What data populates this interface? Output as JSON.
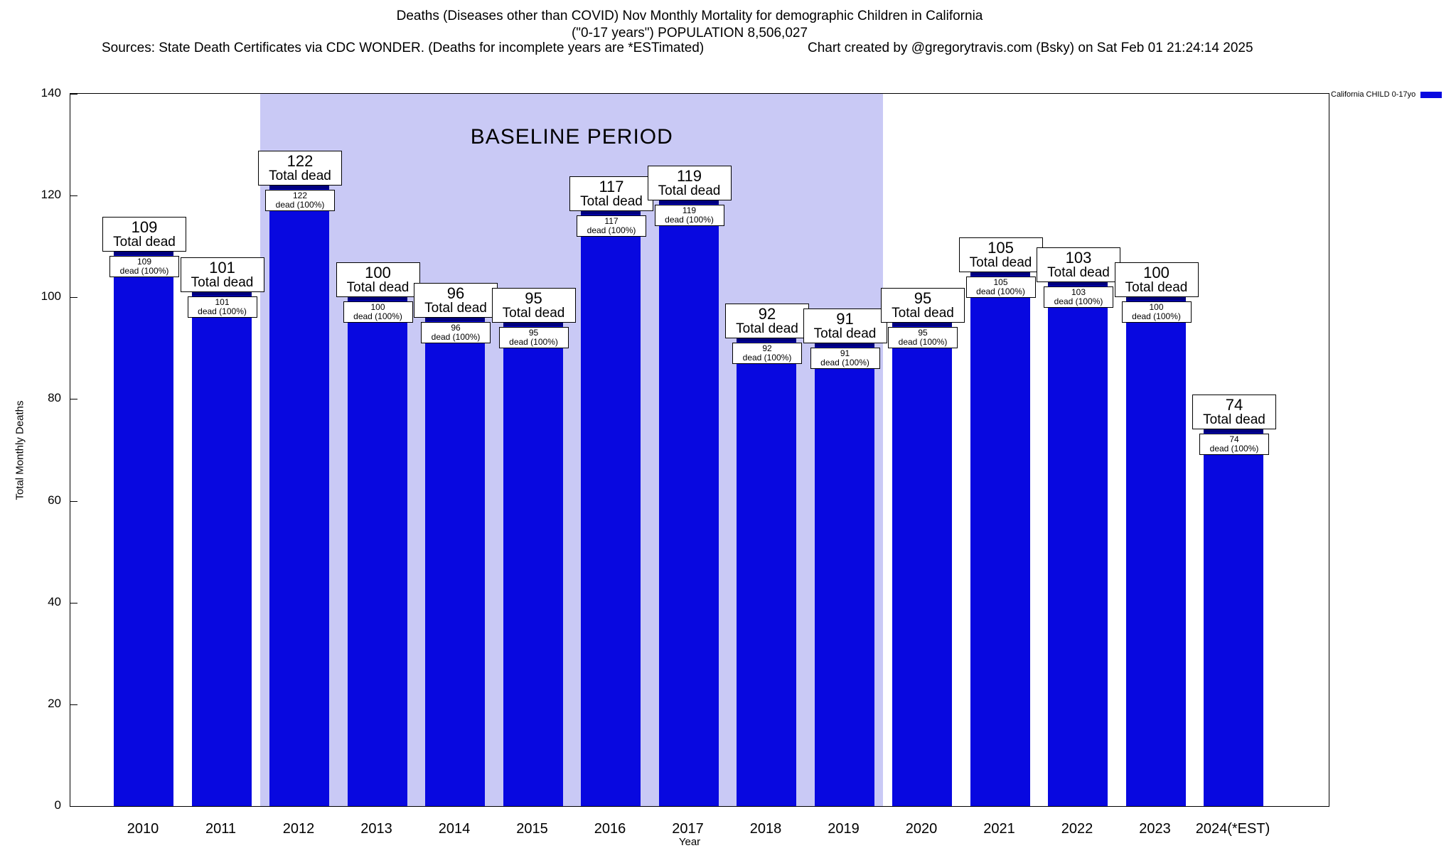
{
  "title": {
    "line1": "Deaths (Diseases other than COVID) Nov Monthly Mortality for demographic Children in California",
    "line2": "(\"0-17 years\") POPULATION 8,506,027",
    "line3_left": "Sources: State Death Certificates via CDC WONDER. (Deaths for incomplete years are *ESTimated)",
    "line3_right": "Chart created by @gregorytravis.com (Bsky) on Sat Feb 01 21:24:14 2025"
  },
  "legend": {
    "label": "California CHILD 0-17yo",
    "color": "#0808e0"
  },
  "chart_data": {
    "type": "bar",
    "title": "Deaths (Diseases other than COVID) Nov Monthly Mortality for demographic Children in California",
    "xlabel": "Year",
    "ylabel": "Total Monthly Deaths",
    "categories": [
      "2010",
      "2011",
      "2012",
      "2013",
      "2014",
      "2015",
      "2016",
      "2017",
      "2018",
      "2019",
      "2020",
      "2021",
      "2022",
      "2023",
      "2024(*EST)"
    ],
    "values": [
      109,
      101,
      122,
      100,
      96,
      95,
      117,
      119,
      92,
      91,
      95,
      105,
      103,
      100,
      74
    ],
    "ylim": [
      0,
      140
    ],
    "yticks": [
      0,
      20,
      40,
      60,
      80,
      100,
      120,
      140
    ],
    "grid": "off",
    "legend_position": "top-right",
    "bar_color": "#0808e0",
    "bar_cap_color": "#00007d",
    "bar_label_top_suffix": "Total dead",
    "bar_label_inner_suffix": "dead (100%)",
    "baseline": {
      "label": "BASELINE PERIOD",
      "start_category": "2012",
      "end_category": "2019",
      "color": "#c9c9f5"
    }
  }
}
